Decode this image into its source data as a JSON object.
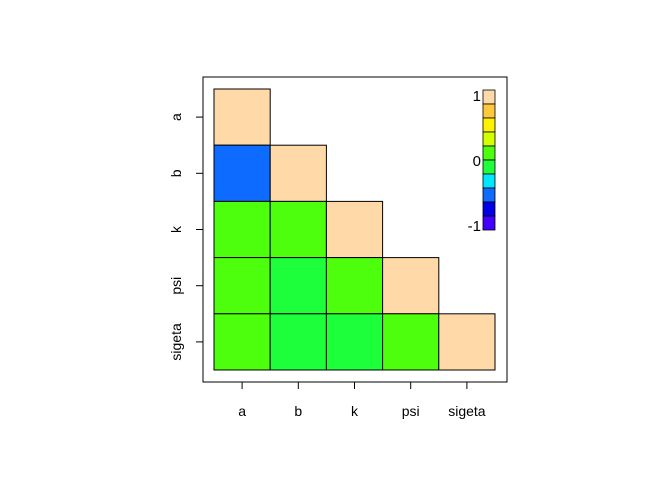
{
  "chart_data": {
    "type": "heatmap",
    "title": "",
    "xlabel": "",
    "ylabel": "",
    "variables": [
      "a",
      "b",
      "k",
      "psi",
      "sigeta"
    ],
    "cells": [
      {
        "row": "a",
        "col": "a",
        "value": 1.0,
        "color": "#FFDAA8"
      },
      {
        "row": "b",
        "col": "a",
        "value": -0.5,
        "color": "#0D6BFF"
      },
      {
        "row": "b",
        "col": "b",
        "value": 1.0,
        "color": "#FFDAA8"
      },
      {
        "row": "k",
        "col": "a",
        "value": 0.15,
        "color": "#4DFF0D"
      },
      {
        "row": "k",
        "col": "b",
        "value": 0.15,
        "color": "#4DFF0D"
      },
      {
        "row": "k",
        "col": "k",
        "value": 1.0,
        "color": "#FFDAA8"
      },
      {
        "row": "psi",
        "col": "a",
        "value": 0.15,
        "color": "#4DFF0D"
      },
      {
        "row": "psi",
        "col": "b",
        "value": 0.05,
        "color": "#1DFF3B"
      },
      {
        "row": "psi",
        "col": "k",
        "value": 0.15,
        "color": "#4DFF0D"
      },
      {
        "row": "psi",
        "col": "psi",
        "value": 1.0,
        "color": "#FFDAA8"
      },
      {
        "row": "sigeta",
        "col": "a",
        "value": 0.15,
        "color": "#4DFF0D"
      },
      {
        "row": "sigeta",
        "col": "b",
        "value": 0.05,
        "color": "#1DFF3B"
      },
      {
        "row": "sigeta",
        "col": "k",
        "value": 0.05,
        "color": "#1DFF3B"
      },
      {
        "row": "sigeta",
        "col": "psi",
        "value": 0.15,
        "color": "#4DFF0D"
      },
      {
        "row": "sigeta",
        "col": "sigeta",
        "value": 1.0,
        "color": "#FFDAA8"
      }
    ],
    "legend": {
      "placement": "top-right",
      "range": [
        -1,
        1
      ],
      "labels": [
        "1",
        "0",
        "-1"
      ],
      "colors": [
        "#FFDAA8",
        "#FFC83C",
        "#FFF200",
        "#D4FF00",
        "#4DFF0D",
        "#1DFF3B",
        "#00E6FF",
        "#0D6BFF",
        "#0000E6",
        "#4400FF"
      ]
    }
  }
}
